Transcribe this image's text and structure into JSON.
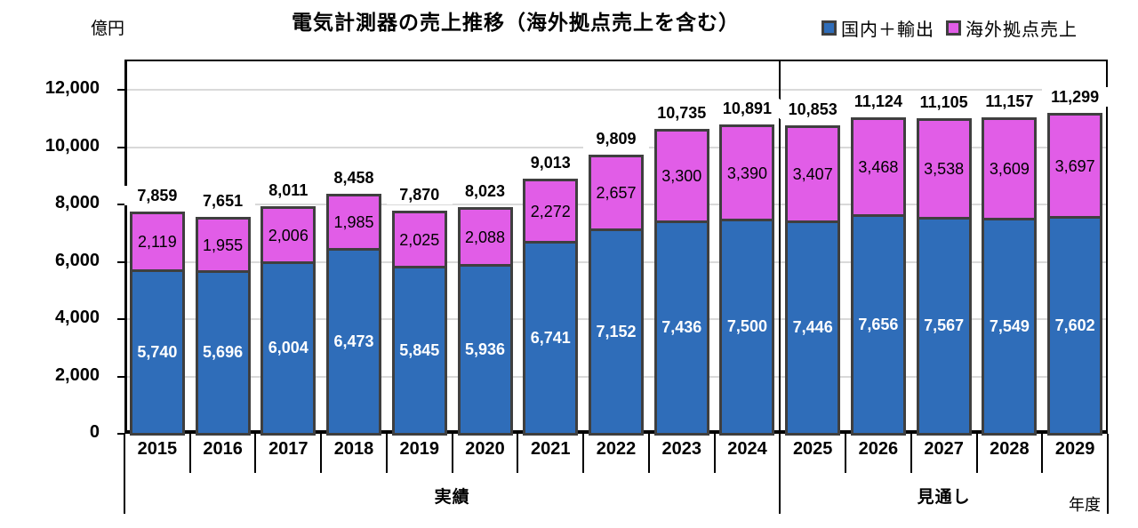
{
  "header": {
    "title": "電気計測器の売上推移（海外拠点売上を含む）",
    "unit_label": "億円",
    "axis_unit_label": "年度"
  },
  "legend": [
    {
      "label": "国内＋輸出",
      "color": "#2F6DB9"
    },
    {
      "label": "海外拠点売上",
      "color": "#E15DE7"
    }
  ],
  "colors": {
    "domestic_fill": "#2F6DB9",
    "overseas_fill": "#E15DE7",
    "bar_border": "#3F3F3F",
    "gridline": "#D9D9D9",
    "axis": "#000000"
  },
  "chart_data": {
    "type": "bar",
    "stacked": true,
    "title": "電気計測器の売上推移（海外拠点売上を含む）",
    "ylabel": "億円",
    "xlabel": "年度",
    "ylim": [
      0,
      12000
    ],
    "ytick_step": 2000,
    "yticks": [
      "0",
      "2,000",
      "4,000",
      "6,000",
      "8,000",
      "10,000",
      "12,000"
    ],
    "grid": true,
    "legend_position": "top-right",
    "categories": [
      "2015",
      "2016",
      "2017",
      "2018",
      "2019",
      "2020",
      "2021",
      "2022",
      "2023",
      "2024",
      "2025",
      "2026",
      "2027",
      "2028",
      "2029"
    ],
    "series": [
      {
        "name": "国内＋輸出",
        "color": "#2F6DB9",
        "values": [
          5740,
          5696,
          6004,
          6473,
          5845,
          5936,
          6741,
          7152,
          7436,
          7500,
          7446,
          7656,
          7567,
          7549,
          7602
        ]
      },
      {
        "name": "海外拠点売上",
        "color": "#E15DE7",
        "values": [
          2119,
          1955,
          2006,
          1985,
          2025,
          2088,
          2272,
          2657,
          3300,
          3390,
          3407,
          3468,
          3538,
          3609,
          3697
        ]
      }
    ],
    "totals": [
      7859,
      7651,
      8011,
      8458,
      7870,
      8023,
      9013,
      9809,
      10735,
      10891,
      10853,
      11124,
      11105,
      11157,
      11299
    ],
    "groups": [
      {
        "label": "実績",
        "from": "2015",
        "to": "2024"
      },
      {
        "label": "見通し",
        "from": "2025",
        "to": "2029"
      }
    ]
  }
}
